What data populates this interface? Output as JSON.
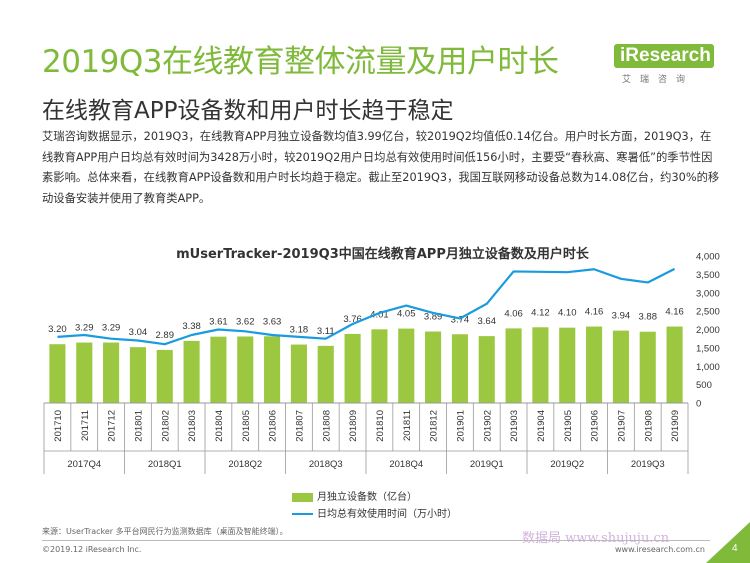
{
  "header": {
    "title": "2019Q3在线教育整体流量及用户时长",
    "subtitle": "在线教育APP设备数和用户时长趋于稳定"
  },
  "logo": {
    "brand": "iResearch",
    "sub": "艾瑞咨询"
  },
  "body_text": "艾瑞咨询数据显示，2019Q3，在线教育APP月独立设备数均值3.99亿台，较2019Q2均值低0.14亿台。用户时长方面，2019Q3，在线教育APP用户日均总有效时间为3428万小时，较2019Q2用户日均总有效使用时间低156小时，主要受“春秋高、寒暑低”的季节性因素影响。总体来看，在线教育APP设备数和用户时长均趋于稳定。截止至2019Q3，我国互联网移动设备总数为14.08亿台，约30%的移动设备安装并使用了教育类APP。",
  "chart_data": {
    "type": "bar",
    "title": "mUserTracker-2019Q3中国在线教育APP月独立设备数及用户时长",
    "categories": [
      "201710",
      "201711",
      "201712",
      "201801",
      "201802",
      "201803",
      "201804",
      "201805",
      "201806",
      "201807",
      "201808",
      "201809",
      "201810",
      "201811",
      "201812",
      "201901",
      "201902",
      "201903",
      "201904",
      "201905",
      "201906",
      "201907",
      "201908",
      "201909"
    ],
    "category_groups": [
      {
        "label": "2017Q4",
        "count": 3
      },
      {
        "label": "2018Q1",
        "count": 3
      },
      {
        "label": "2018Q2",
        "count": 3
      },
      {
        "label": "2018Q3",
        "count": 3
      },
      {
        "label": "2018Q4",
        "count": 3
      },
      {
        "label": "2019Q1",
        "count": 3
      },
      {
        "label": "2019Q2",
        "count": 3
      },
      {
        "label": "2019Q3",
        "count": 3
      }
    ],
    "series": [
      {
        "name": "月独立设备数（亿台）",
        "type": "bar",
        "axis": "right",
        "color": "#9bc840",
        "labels": [
          "3.20",
          "3.29",
          "3.29",
          "3.04",
          "2.89",
          "3.38",
          "3.61",
          "3.62",
          "3.63",
          "3.18",
          "3.11",
          "3.76",
          "4.01",
          "4.05",
          "3.89",
          "3.74",
          "3.64",
          "4.06",
          "4.12",
          "4.10",
          "4.16",
          "3.94",
          "3.88",
          "4.16"
        ],
        "values": [
          1600,
          1645,
          1645,
          1520,
          1445,
          1690,
          1805,
          1810,
          1815,
          1590,
          1555,
          1880,
          2005,
          2025,
          1945,
          1870,
          1820,
          2030,
          2060,
          2050,
          2080,
          1970,
          1940,
          2080
        ]
      },
      {
        "name": "日均总有效使用时间（万小时）",
        "type": "line",
        "axis": "right",
        "color": "#1a9be0",
        "values": [
          1800,
          1850,
          1750,
          1700,
          1600,
          1850,
          2000,
          1950,
          1850,
          1800,
          1750,
          2150,
          2450,
          2650,
          2450,
          2300,
          2700,
          3580,
          3570,
          3560,
          3640,
          3380,
          3280,
          3650
        ]
      }
    ],
    "y_right": {
      "min": 0,
      "max": 4000,
      "ticks": [
        "0",
        "500",
        "1,000",
        "1,500",
        "2,000",
        "2,500",
        "3,000",
        "3,500",
        "4,000"
      ]
    },
    "legend": [
      "月独立设备数（亿台）",
      "日均总有效使用时间（万小时）"
    ]
  },
  "colors": {
    "accent": "#7fba3a",
    "bar": "#9bc840",
    "line": "#1a9be0"
  },
  "footer": {
    "source": "来源：UserTracker 多平台网民行为监测数据库（桌面及智能终端）。",
    "copyright": "©2019.12 iResearch Inc.",
    "site": "www.iresearch.com.cn",
    "watermark": "数据局 www.shujuju.cn",
    "page": "4"
  }
}
